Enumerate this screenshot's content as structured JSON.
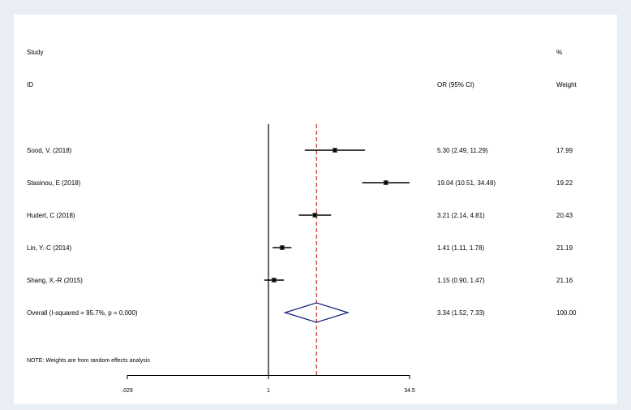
{
  "chart_data": {
    "type": "forest",
    "headers": {
      "study_line1": "Study",
      "study_line2": "ID",
      "effect": "OR (95% CI)",
      "weight_line1": "%",
      "weight_line2": "Weight"
    },
    "studies": [
      {
        "label": "Sood, V. (2018)",
        "or": 5.3,
        "lo": 2.49,
        "hi": 11.29,
        "ci_text": "5.30 (2.49, 11.29)",
        "weight": "17.99"
      },
      {
        "label": "Stasinou, E (2018)",
        "or": 19.04,
        "lo": 10.51,
        "hi": 34.48,
        "ci_text": "19.04 (10.51, 34.48)",
        "weight": "19.22"
      },
      {
        "label": "Hudert, C (2018)",
        "or": 3.21,
        "lo": 2.14,
        "hi": 4.81,
        "ci_text": "3.21 (2.14, 4.81)",
        "weight": "20.43"
      },
      {
        "label": "Lin, Y.-C (2014)",
        "or": 1.41,
        "lo": 1.11,
        "hi": 1.78,
        "ci_text": "1.41 (1.11, 1.78)",
        "weight": "21.19"
      },
      {
        "label": "Shang, X.-R (2015)",
        "or": 1.15,
        "lo": 0.9,
        "hi": 1.47,
        "ci_text": "1.15 (0.90, 1.47)",
        "weight": "21.16"
      }
    ],
    "overall": {
      "label": "Overall  (I-squared = 95.7%, p = 0.000)",
      "or": 3.34,
      "lo": 1.52,
      "hi": 7.33,
      "ci_text": "3.34 (1.52, 7.33)",
      "weight": "100.00"
    },
    "note": "NOTE: Weights are from random effects analysis",
    "x_scale": "log",
    "x_range": [
      0.029,
      34.5
    ],
    "x_ticks": [
      {
        "value": 0.029,
        "label": ".029"
      },
      {
        "value": 1,
        "label": "1"
      },
      {
        "value": 34.5,
        "label": "34.5"
      }
    ],
    "null_line": 1,
    "colors": {
      "ci": "#000000",
      "point": "#000000",
      "diamond": "#1a237e",
      "overall_line": "#c62828",
      "background": "#e8eef4"
    }
  }
}
